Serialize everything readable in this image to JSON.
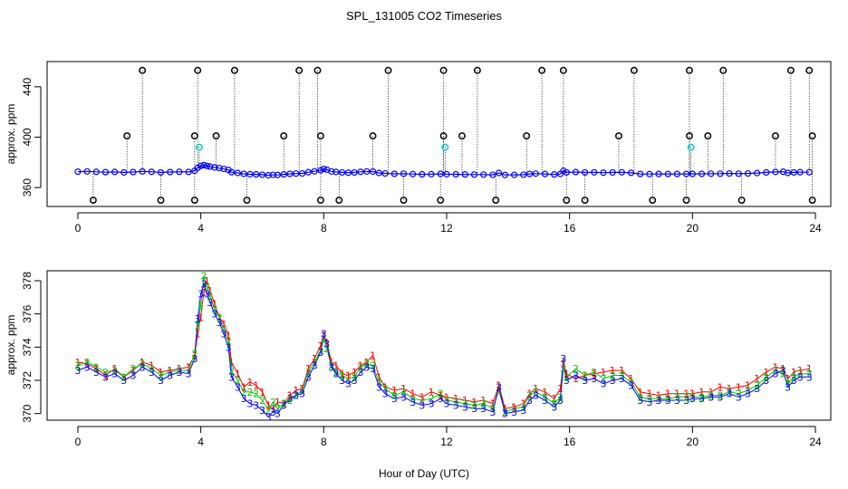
{
  "title": "SPL_131005  CO2 Timeseries",
  "xlabel": "Hour of Day (UTC)",
  "colors": {
    "series1": "#ff0000",
    "series2": "#00cc00",
    "series3": "#0000ff",
    "flag_black": "#000000",
    "flag_cyan": "#00cccc",
    "line": "#0000ff"
  },
  "chart_data": [
    {
      "type": "scatter",
      "panel": "top",
      "ylabel": "approx. ppm",
      "xlim": [
        -1,
        24.5
      ],
      "ylim": [
        345,
        460
      ],
      "xticks": [
        0,
        4,
        8,
        12,
        16,
        20,
        24
      ],
      "yticks": [
        360,
        400,
        440
      ],
      "baseline_note": "blue line with circles following the ~371 ppm timeseries",
      "flag_high_x": [
        2.1,
        3.9,
        5.1,
        7.2,
        7.8,
        10.1,
        11.9,
        13.0,
        15.1,
        15.8,
        18.1,
        19.9,
        21.0,
        23.2,
        23.8
      ],
      "flag_high_y": 453,
      "flag_mid_x": [
        1.6,
        3.8,
        4.5,
        6.7,
        7.9,
        9.6,
        11.9,
        12.5,
        14.6,
        17.6,
        19.9,
        20.5,
        22.7,
        23.9
      ],
      "flag_mid_y": 401,
      "flag_low_x": [
        0.5,
        2.7,
        3.8,
        5.5,
        7.9,
        8.5,
        10.6,
        11.8,
        13.6,
        15.9,
        16.5,
        18.7,
        19.8,
        21.6,
        23.9
      ],
      "flag_low_y": 350,
      "flag_cyan_x": [
        3.95,
        11.95,
        19.95
      ],
      "flag_cyan_y": 392
    },
    {
      "type": "line",
      "panel": "bottom",
      "ylabel": "approx. ppm",
      "xlim": [
        -1,
        24.5
      ],
      "ylim": [
        369.6,
        378.6
      ],
      "xticks": [
        0,
        4,
        8,
        12,
        16,
        20,
        24
      ],
      "yticks": [
        370,
        372,
        374,
        376,
        378
      ],
      "x": [
        0.0,
        0.3,
        0.6,
        0.9,
        1.2,
        1.5,
        1.8,
        2.1,
        2.4,
        2.7,
        3.0,
        3.3,
        3.6,
        3.8,
        3.9,
        4.0,
        4.1,
        4.2,
        4.3,
        4.45,
        4.6,
        4.75,
        4.9,
        5.0,
        5.2,
        5.4,
        5.6,
        5.8,
        6.0,
        6.2,
        6.35,
        6.5,
        6.7,
        6.9,
        7.1,
        7.3,
        7.5,
        7.7,
        7.9,
        8.0,
        8.1,
        8.25,
        8.4,
        8.6,
        8.8,
        9.0,
        9.2,
        9.4,
        9.6,
        9.8,
        10.0,
        10.3,
        10.6,
        10.9,
        11.2,
        11.5,
        11.8,
        12.0,
        12.3,
        12.6,
        12.9,
        13.2,
        13.5,
        13.7,
        13.9,
        14.2,
        14.5,
        14.7,
        14.9,
        15.2,
        15.5,
        15.7,
        15.8,
        15.9,
        16.2,
        16.5,
        16.8,
        17.1,
        17.4,
        17.7,
        18.0,
        18.3,
        18.6,
        18.9,
        19.2,
        19.5,
        19.8,
        20.0,
        20.3,
        20.6,
        20.9,
        21.2,
        21.5,
        21.8,
        22.1,
        22.4,
        22.7,
        22.95,
        23.1,
        23.3,
        23.5,
        23.8
      ],
      "series": [
        {
          "name": "1",
          "values": [
            373.1,
            373.0,
            372.7,
            372.3,
            372.7,
            372.2,
            372.6,
            373.1,
            372.9,
            372.5,
            372.6,
            372.7,
            372.8,
            373.5,
            374.8,
            375.8,
            377.3,
            378.0,
            377.4,
            376.6,
            375.8,
            375.4,
            374.7,
            373.1,
            372.4,
            371.6,
            371.9,
            371.7,
            371.3,
            370.5,
            370.3,
            370.7,
            370.6,
            371.1,
            371.4,
            371.5,
            372.7,
            373.3,
            374.1,
            374.7,
            374.3,
            373.1,
            372.9,
            372.4,
            372.3,
            372.5,
            372.9,
            373.1,
            373.5,
            372.2,
            371.6,
            371.4,
            371.5,
            371.2,
            371.0,
            371.3,
            371.1,
            371.0,
            370.9,
            370.8,
            370.7,
            370.8,
            370.6,
            371.7,
            370.3,
            370.4,
            370.6,
            371.2,
            371.5,
            371.3,
            370.9,
            371.5,
            373.0,
            372.4,
            372.1,
            372.3,
            372.4,
            372.5,
            372.6,
            372.6,
            372.1,
            371.3,
            371.2,
            371.1,
            371.2,
            371.2,
            371.2,
            371.2,
            371.3,
            371.3,
            371.6,
            371.5,
            371.6,
            371.7,
            372.1,
            372.5,
            372.8,
            372.7,
            372.1,
            372.5,
            372.6,
            372.7
          ]
        },
        {
          "name": "2",
          "values": [
            372.9,
            373.1,
            372.8,
            372.5,
            372.6,
            372.2,
            372.7,
            373.0,
            372.7,
            372.3,
            372.5,
            372.6,
            372.6,
            373.6,
            375.3,
            376.5,
            378.3,
            377.6,
            377.1,
            376.3,
            375.8,
            375.1,
            374.4,
            372.6,
            372.0,
            371.3,
            371.3,
            371.2,
            370.8,
            370.2,
            370.7,
            370.3,
            370.6,
            370.8,
            371.1,
            371.4,
            372.5,
            373.1,
            373.8,
            374.5,
            373.9,
            372.9,
            372.5,
            372.3,
            372.1,
            372.2,
            372.8,
            373.0,
            372.9,
            371.9,
            371.5,
            371.1,
            371.3,
            370.9,
            370.8,
            370.9,
            371.2,
            370.8,
            370.7,
            370.6,
            370.5,
            370.6,
            370.3,
            371.4,
            370.1,
            370.3,
            370.4,
            371.1,
            371.3,
            371.0,
            370.6,
            371.0,
            372.7,
            372.2,
            372.7,
            372.3,
            372.5,
            372.1,
            372.3,
            372.3,
            371.9,
            371.0,
            370.9,
            370.9,
            370.9,
            371.0,
            371.0,
            371.0,
            371.0,
            371.1,
            371.1,
            371.3,
            371.2,
            371.4,
            371.7,
            372.2,
            372.6,
            372.4,
            371.8,
            372.2,
            372.4,
            372.4
          ]
        },
        {
          "name": "3",
          "values": [
            372.6,
            372.8,
            372.5,
            372.2,
            372.4,
            372.0,
            372.3,
            372.8,
            372.5,
            372.0,
            372.3,
            372.5,
            372.4,
            373.3,
            375.7,
            377.2,
            377.8,
            377.2,
            376.7,
            376.0,
            375.5,
            374.8,
            374.0,
            372.2,
            371.6,
            370.9,
            370.6,
            370.5,
            370.2,
            369.8,
            370.1,
            370.0,
            370.5,
            370.9,
            371.1,
            371.2,
            372.2,
            372.9,
            373.7,
            374.8,
            374.2,
            372.8,
            372.4,
            372.0,
            371.8,
            372.0,
            372.5,
            372.8,
            372.7,
            371.6,
            371.2,
            370.9,
            371.0,
            370.7,
            370.5,
            370.6,
            370.9,
            370.6,
            370.5,
            370.4,
            370.3,
            370.3,
            370.1,
            371.6,
            370.0,
            370.1,
            370.2,
            370.8,
            371.1,
            370.8,
            370.4,
            370.8,
            373.3,
            372.0,
            372.3,
            372.0,
            372.1,
            371.8,
            372.0,
            372.1,
            371.7,
            370.8,
            370.7,
            370.8,
            370.8,
            370.8,
            370.8,
            370.9,
            370.9,
            371.0,
            371.0,
            371.2,
            371.0,
            371.2,
            371.5,
            372.0,
            372.4,
            372.6,
            371.6,
            372.0,
            372.2,
            372.2
          ]
        }
      ]
    }
  ]
}
